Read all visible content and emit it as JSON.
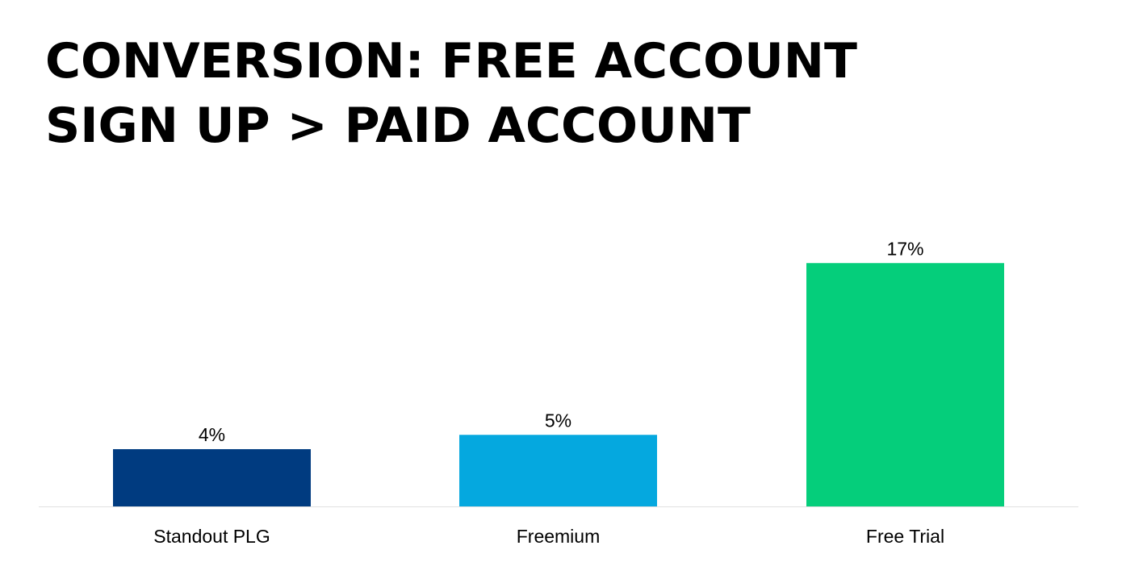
{
  "chart_data": {
    "type": "bar",
    "title_lines": [
      "CONVERSION: FREE ACCOUNT",
      "SIGN UP > PAID ACCOUNT"
    ],
    "categories": [
      "Standout PLG",
      "Freemium",
      "Free Trial"
    ],
    "values": [
      4,
      5,
      17
    ],
    "data_labels": [
      "4%",
      "5%",
      "17%"
    ],
    "colors": [
      "#003B80",
      "#05A8DF",
      "#05CE7B"
    ],
    "ylim": [
      0,
      20
    ],
    "grid": false,
    "y_axis_shown": false,
    "legend": "none"
  }
}
